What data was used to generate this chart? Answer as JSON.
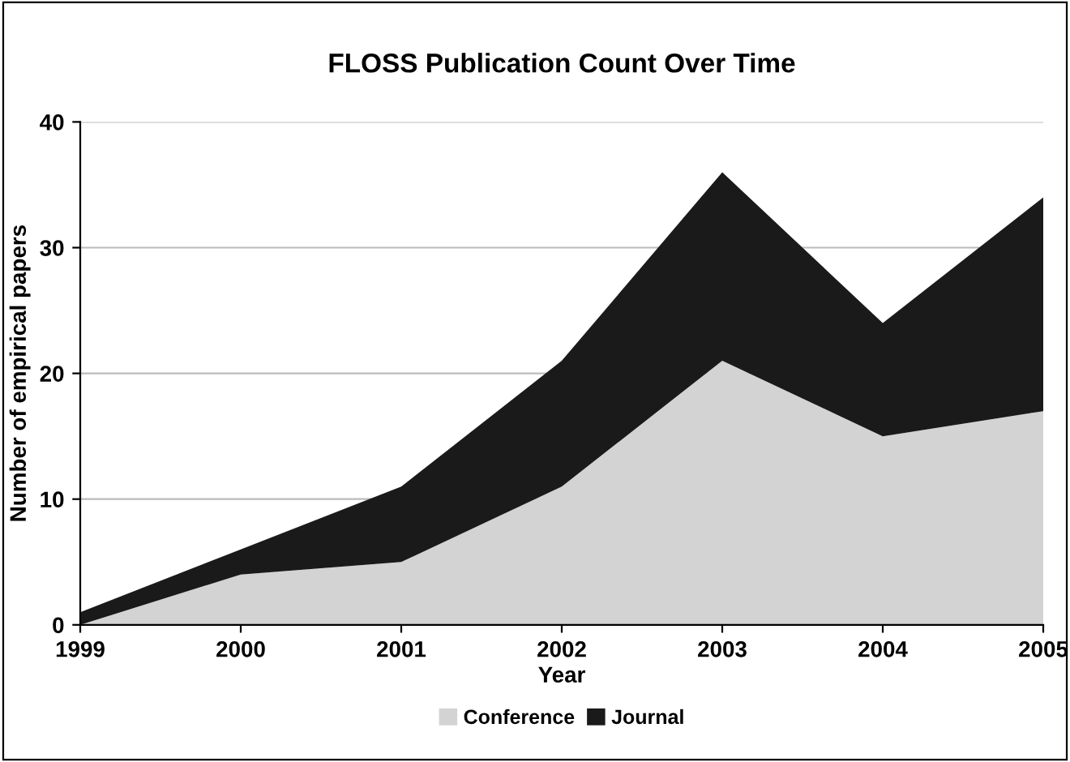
{
  "chart_data": {
    "type": "area",
    "title": "FLOSS Publication Count Over Time",
    "xlabel": "Year",
    "ylabel": "Number of empirical papers",
    "x": [
      1999,
      2000,
      2001,
      2002,
      2003,
      2004,
      2005
    ],
    "stacked": true,
    "series": [
      {
        "name": "Conference",
        "color": "#d3d3d3",
        "values": [
          0,
          4,
          5,
          11,
          21,
          15,
          17
        ]
      },
      {
        "name": "Journal",
        "color": "#1a1a1a",
        "values": [
          1,
          2,
          6,
          10,
          15,
          9,
          17
        ]
      }
    ],
    "xlim": [
      1999,
      2005
    ],
    "xticks": [
      1999,
      2000,
      2001,
      2002,
      2003,
      2004,
      2005
    ],
    "ylim": [
      0,
      40
    ],
    "yticks": [
      0,
      10,
      20,
      30,
      40
    ],
    "grid": "y",
    "legend": "bottom"
  }
}
